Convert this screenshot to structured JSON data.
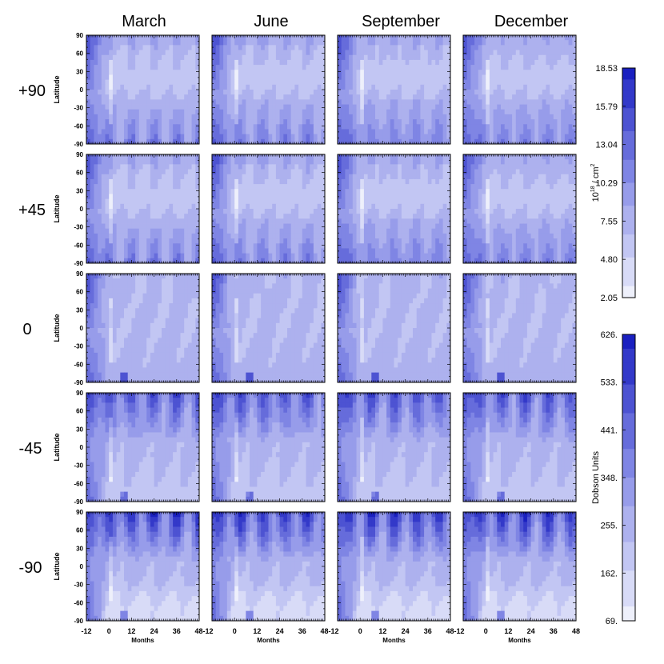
{
  "chart_data": {
    "type": "heatmap",
    "columns": [
      "March",
      "June",
      "September",
      "December"
    ],
    "rows": [
      "+90",
      "+45",
      "0",
      "-45",
      "-90"
    ],
    "ylabel": "Latitude",
    "xlabel": "Months",
    "yticks": [
      "90",
      "60",
      "30",
      "0",
      "-30",
      "-60",
      "-90"
    ],
    "xticks": [
      "-12",
      "0",
      "12",
      "24",
      "36",
      "48"
    ],
    "xticks_joined": [
      "-12",
      "0",
      "12",
      "24",
      "36",
      "48-12",
      "0",
      "12",
      "24",
      "36",
      "48-12",
      "0",
      "12",
      "24",
      "36",
      "48-12",
      "0",
      "12",
      "24",
      "36",
      "48"
    ],
    "xlim": [
      -12,
      48
    ],
    "ylim": [
      -90,
      90
    ],
    "colorbars": [
      {
        "label": "10^18 / cm^2",
        "label_base": "10",
        "label_exp": "18",
        "label_mid": " / cm",
        "label_sq": "2",
        "ticks": [
          "18.53",
          "15.79",
          "13.04",
          "10.29",
          "7.55",
          "4.80",
          "2.05"
        ],
        "min": 2.05,
        "max": 18.53,
        "applies_to_rows": [
          "+90",
          "+45"
        ]
      },
      {
        "label": "Dobson Units",
        "ticks": [
          "626.",
          "533.",
          "441.",
          "348.",
          "255.",
          "162.",
          "69."
        ],
        "min": 69,
        "max": 626,
        "applies_to_rows": [
          "0",
          "-45",
          "-90"
        ]
      }
    ],
    "colors": {
      "light": "#eef0fb",
      "mid": "#8c92e8",
      "dark": "#1a20c0"
    }
  }
}
